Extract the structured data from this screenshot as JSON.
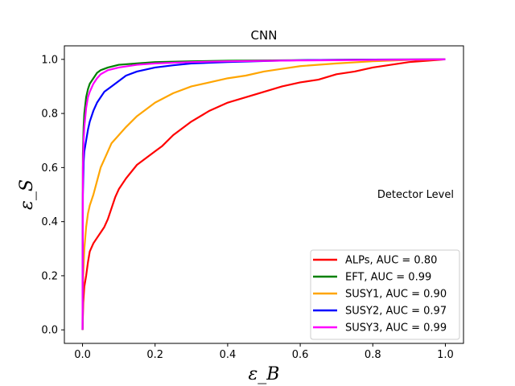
{
  "chart_data": {
    "type": "line",
    "title": "CNN",
    "xlabel": "ε_B",
    "ylabel": "ε_S",
    "xlim": [
      -0.05,
      1.05
    ],
    "ylim": [
      -0.05,
      1.05
    ],
    "xticks": [
      "0.0",
      "0.2",
      "0.4",
      "0.6",
      "0.8",
      "1.0"
    ],
    "yticks": [
      "0.0",
      "0.2",
      "0.4",
      "0.6",
      "0.8",
      "1.0"
    ],
    "grid": false,
    "legend_position": "lower-right",
    "annotation": "Detector Level",
    "series": [
      {
        "name": "ALPs, AUC = 0.80",
        "color": "#ff0000",
        "x": [
          0,
          0.002,
          0.005,
          0.01,
          0.015,
          0.02,
          0.03,
          0.04,
          0.05,
          0.06,
          0.07,
          0.08,
          0.09,
          0.1,
          0.12,
          0.15,
          0.18,
          0.2,
          0.22,
          0.25,
          0.28,
          0.3,
          0.35,
          0.4,
          0.45,
          0.5,
          0.55,
          0.6,
          0.65,
          0.7,
          0.75,
          0.8,
          0.85,
          0.9,
          0.95,
          1.0
        ],
        "y": [
          0,
          0.1,
          0.16,
          0.2,
          0.25,
          0.29,
          0.32,
          0.34,
          0.36,
          0.38,
          0.41,
          0.45,
          0.49,
          0.52,
          0.56,
          0.61,
          0.64,
          0.66,
          0.68,
          0.72,
          0.75,
          0.77,
          0.81,
          0.84,
          0.86,
          0.88,
          0.9,
          0.915,
          0.925,
          0.945,
          0.955,
          0.97,
          0.98,
          0.99,
          0.995,
          1.0
        ]
      },
      {
        "name": "EFT, AUC = 0.99",
        "color": "#008000",
        "x": [
          0,
          0.001,
          0.003,
          0.005,
          0.01,
          0.015,
          0.02,
          0.03,
          0.04,
          0.05,
          0.07,
          0.1,
          0.15,
          0.2,
          0.3,
          0.4,
          0.6,
          0.8,
          1.0
        ],
        "y": [
          0,
          0.65,
          0.75,
          0.8,
          0.86,
          0.89,
          0.91,
          0.93,
          0.95,
          0.96,
          0.97,
          0.98,
          0.985,
          0.99,
          0.993,
          0.995,
          0.997,
          0.999,
          1.0
        ]
      },
      {
        "name": "SUSY1, AUC = 0.90",
        "color": "#ffa500",
        "x": [
          0,
          0.002,
          0.005,
          0.01,
          0.015,
          0.02,
          0.03,
          0.04,
          0.05,
          0.06,
          0.07,
          0.08,
          0.1,
          0.12,
          0.15,
          0.18,
          0.2,
          0.25,
          0.3,
          0.35,
          0.4,
          0.45,
          0.5,
          0.55,
          0.6,
          0.7,
          0.8,
          0.9,
          1.0
        ],
        "y": [
          0,
          0.2,
          0.3,
          0.38,
          0.43,
          0.46,
          0.5,
          0.55,
          0.6,
          0.63,
          0.66,
          0.69,
          0.72,
          0.75,
          0.79,
          0.82,
          0.84,
          0.875,
          0.9,
          0.915,
          0.93,
          0.94,
          0.955,
          0.965,
          0.975,
          0.985,
          0.993,
          0.998,
          1.0
        ]
      },
      {
        "name": "SUSY2, AUC = 0.97",
        "color": "#0000ff",
        "x": [
          0,
          0.001,
          0.003,
          0.005,
          0.01,
          0.015,
          0.02,
          0.03,
          0.04,
          0.05,
          0.06,
          0.08,
          0.1,
          0.12,
          0.15,
          0.2,
          0.25,
          0.3,
          0.4,
          0.5,
          0.6,
          0.8,
          1.0
        ],
        "y": [
          0,
          0.5,
          0.62,
          0.66,
          0.7,
          0.74,
          0.77,
          0.81,
          0.84,
          0.86,
          0.88,
          0.9,
          0.92,
          0.94,
          0.955,
          0.97,
          0.978,
          0.985,
          0.99,
          0.994,
          0.997,
          0.999,
          1.0
        ]
      },
      {
        "name": "SUSY3, AUC = 0.99",
        "color": "#ff00ff",
        "x": [
          0,
          0.001,
          0.003,
          0.005,
          0.01,
          0.015,
          0.02,
          0.03,
          0.04,
          0.05,
          0.07,
          0.1,
          0.15,
          0.2,
          0.3,
          0.4,
          0.6,
          0.8,
          1.0
        ],
        "y": [
          0,
          0.6,
          0.7,
          0.75,
          0.82,
          0.86,
          0.88,
          0.91,
          0.93,
          0.945,
          0.96,
          0.97,
          0.98,
          0.985,
          0.99,
          0.993,
          0.996,
          0.998,
          1.0
        ]
      }
    ]
  }
}
